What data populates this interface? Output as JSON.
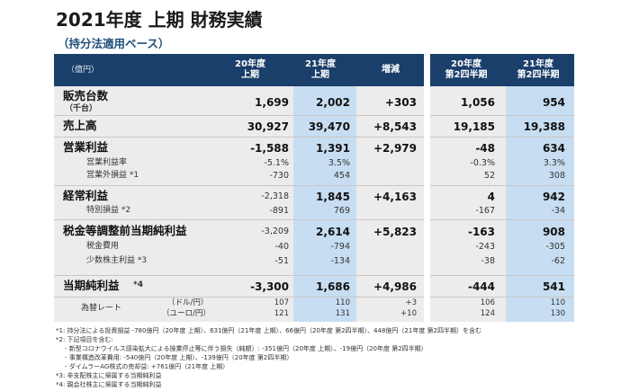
{
  "title": "2021年度 上期 財務実績",
  "subtitle": "（持分法適用ベース）",
  "header": {
    "unit": "（億円）",
    "col1": "20年度\n上期",
    "col2": "21年度\n上期",
    "col3": "増減",
    "col4": "20年度\n第2四半期",
    "col5": "21年度\n第2四半期"
  },
  "rows": {
    "sales_units": {
      "label": "販売台数",
      "sub": "（千台）",
      "v1": "1,699",
      "v2": "2,002",
      "v3": "+303",
      "v4": "1,056",
      "v5": "954"
    },
    "revenue": {
      "label": "売上高",
      "v1": "30,927",
      "v2": "39,470",
      "v3": "+8,543",
      "v4": "19,185",
      "v5": "19,388"
    },
    "operating": {
      "label": "営業利益",
      "v1": "-1,588",
      "v2": "1,391",
      "v3": "+2,979",
      "v4": "-48",
      "v5": "634"
    },
    "op_margin": {
      "label": "営業利益率",
      "v1": "-5.1%",
      "v2": "3.5%",
      "v4": "-0.3%",
      "v5": "3.3%"
    },
    "non_op": {
      "label": "営業外損益 *1",
      "v1": "-730",
      "v2": "454",
      "v4": "52",
      "v5": "308"
    },
    "ordinary": {
      "label": "経常利益",
      "v1": "-2,318",
      "v2": "1,845",
      "v3": "+4,163",
      "v4": "4",
      "v5": "942"
    },
    "extraordinary": {
      "label": "特別損益 *2",
      "v1": "-891",
      "v2": "769",
      "v4": "-167",
      "v5": "-34"
    },
    "pretax": {
      "label": "税金等調整前当期純利益",
      "v1": "-3,209",
      "v2": "2,614",
      "v3": "+5,823",
      "v4": "-163",
      "v5": "908"
    },
    "tax": {
      "label": "税金費用",
      "v1": "-40",
      "v2": "-794",
      "v4": "-243",
      "v5": "-305"
    },
    "minority": {
      "label": "少数株主利益 *3",
      "v1": "-51",
      "v2": "-134",
      "v4": "-38",
      "v5": "-62"
    },
    "net": {
      "label": "当期純利益",
      "note": "*4",
      "v1": "-3,300",
      "v2": "1,686",
      "v3": "+4,986",
      "v4": "-444",
      "v5": "541"
    },
    "fx": {
      "label": "為替レート",
      "usd": "（ドル/円）",
      "eur": "（ユーロ/円）",
      "usd_v1": "107",
      "usd_v2": "110",
      "usd_v3": "+3",
      "usd_v4": "106",
      "usd_v5": "110",
      "eur_v1": "121",
      "eur_v2": "131",
      "eur_v3": "+10",
      "eur_v4": "124",
      "eur_v5": "130"
    }
  },
  "footnotes": [
    "*1: 持分法による投資損益 -780億円（20年度 上期）、631億円（21年度 上期）、66億円（20年度 第2四半期）、448億円（21年度 第2四半期）を含む",
    "*2: 下記項目を含む:",
    "- 新型コロナウイルス感染拡大による操業停止等に伴う損失（純額）: -351億円（20年度 上期）、-19億円（20年度 第2四半期）",
    "- 事業構造改革費用: -540億円（20年度 上期）、-139億円（20年度 第2四半期）",
    "- ダイムラーAG株式の売却益: +761億円（21年度 上期）",
    "*3: 非支配株主に帰属する当期純利益",
    "*4: 親会社株主に帰属する当期純利益"
  ]
}
